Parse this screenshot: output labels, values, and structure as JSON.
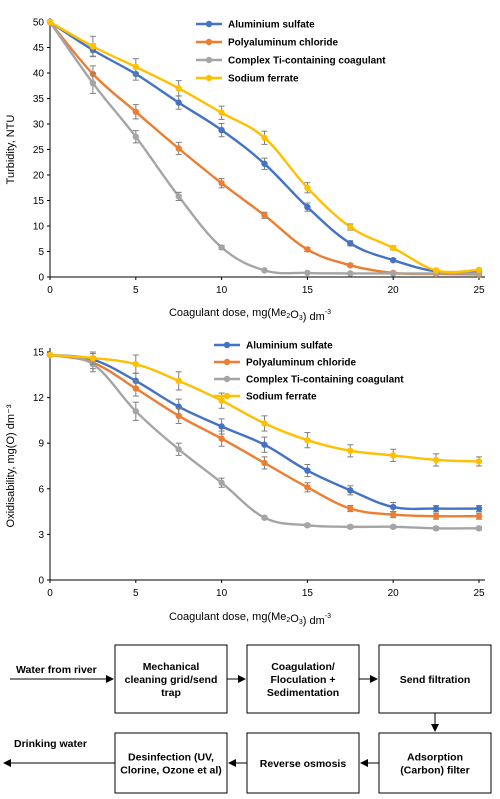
{
  "colors": {
    "aluminium_sulfate": "#4472C4",
    "polyaluminum_chloride": "#ED7D31",
    "ti_coagulant": "#A5A5A5",
    "sodium_ferrate": "#FFC000"
  },
  "chart_data": [
    {
      "type": "line",
      "xlabel_parts": [
        "Coagulant dose, mg(Me",
        "2",
        "O",
        "3",
        ") dm",
        "-3"
      ],
      "ylabel": "Turbidity, NTU",
      "xlim": [
        0,
        25
      ],
      "ylim": [
        0,
        50
      ],
      "xticks": [
        0,
        5,
        10,
        15,
        20,
        25
      ],
      "yticks": [
        0,
        5,
        10,
        15,
        20,
        25,
        30,
        35,
        40,
        45,
        50
      ],
      "legend": "top-right",
      "grid": false,
      "x": [
        0,
        2.5,
        5,
        7.5,
        10,
        12.5,
        15,
        17.5,
        20,
        22.5,
        25
      ],
      "series": [
        {
          "name": "Aluminium sulfate",
          "color_key": "aluminium_sulfate",
          "values": [
            50,
            44.5,
            39.8,
            34.2,
            28.8,
            22.2,
            13.7,
            6.6,
            3.3,
            1.1,
            0.9
          ],
          "errors": [
            0,
            1.2,
            1.2,
            1.3,
            1.3,
            1.1,
            0.8,
            0.5,
            0.3,
            0.2,
            0.2
          ]
        },
        {
          "name": "Polyaluminum chloride",
          "color_key": "polyaluminum_chloride",
          "values": [
            50,
            39.8,
            32.4,
            25.2,
            18.4,
            12.1,
            5.4,
            2.3,
            0.8,
            0.6,
            0.5
          ],
          "errors": [
            0,
            1.6,
            1.4,
            1.2,
            0.9,
            0.6,
            0.4,
            0.3,
            0.2,
            0.1,
            0.1
          ]
        },
        {
          "name": "Complex Ti-containing coagulant",
          "color_key": "ti_coagulant",
          "values": [
            50,
            38.0,
            27.5,
            15.8,
            5.8,
            1.3,
            0.8,
            0.7,
            0.7,
            0.7,
            0.7
          ],
          "errors": [
            0,
            2.0,
            1.2,
            0.8,
            0.4,
            0.2,
            0.1,
            0.1,
            0.1,
            0.1,
            0.1
          ]
        },
        {
          "name": "Sodium ferrate",
          "color_key": "sodium_ferrate",
          "values": [
            50,
            45.2,
            41.2,
            37.0,
            32.2,
            27.3,
            17.5,
            9.8,
            5.7,
            1.3,
            1.4
          ],
          "errors": [
            0,
            2.0,
            1.6,
            1.5,
            1.3,
            1.3,
            1.0,
            0.6,
            0.4,
            0.2,
            0.2
          ]
        }
      ]
    },
    {
      "type": "line",
      "xlabel_parts": [
        "Coagulant dose, mg(Me",
        "2",
        "O",
        "3",
        ") dm",
        "-3"
      ],
      "ylabel": "Oxidisability, mg(O) dm⁻³",
      "xlim": [
        0,
        25
      ],
      "ylim": [
        0,
        15
      ],
      "xticks": [
        0,
        5,
        10,
        15,
        20,
        25
      ],
      "yticks": [
        0,
        3,
        6,
        9,
        12,
        15
      ],
      "legend": "top-right",
      "grid": false,
      "x": [
        0,
        2.5,
        5,
        7.5,
        10,
        12.5,
        15,
        17.5,
        20,
        22.5,
        25
      ],
      "series": [
        {
          "name": "Aluminium sulfate",
          "color_key": "aluminium_sulfate",
          "values": [
            14.8,
            14.5,
            13.1,
            11.4,
            10.1,
            8.9,
            7.2,
            5.9,
            4.8,
            4.7,
            4.7
          ],
          "errors": [
            0,
            0.4,
            0.5,
            0.5,
            0.5,
            0.5,
            0.4,
            0.3,
            0.3,
            0.2,
            0.2
          ]
        },
        {
          "name": "Polyaluminum chloride",
          "color_key": "polyaluminum_chloride",
          "values": [
            14.8,
            14.3,
            12.6,
            10.8,
            9.3,
            7.7,
            6.1,
            4.7,
            4.3,
            4.2,
            4.2
          ],
          "errors": [
            0,
            0.4,
            0.5,
            0.5,
            0.5,
            0.4,
            0.3,
            0.2,
            0.2,
            0.2,
            0.2
          ]
        },
        {
          "name": "Complex Ti-containing coagulant",
          "color_key": "ti_coagulant",
          "values": [
            14.8,
            14.2,
            11.1,
            8.6,
            6.4,
            4.1,
            3.6,
            3.5,
            3.5,
            3.4,
            3.4
          ],
          "errors": [
            0,
            0.5,
            0.6,
            0.4,
            0.3,
            0.1,
            0.1,
            0.1,
            0.1,
            0.1,
            0.1
          ]
        },
        {
          "name": "Sodium ferrate",
          "color_key": "sodium_ferrate",
          "values": [
            14.8,
            14.6,
            14.2,
            13.1,
            11.8,
            10.3,
            9.2,
            8.5,
            8.2,
            7.9,
            7.8
          ],
          "errors": [
            0,
            0.4,
            0.6,
            0.6,
            0.5,
            0.5,
            0.5,
            0.4,
            0.4,
            0.4,
            0.3
          ]
        }
      ]
    }
  ],
  "flow": {
    "source": "Water from river",
    "output": "Drinking water",
    "steps": [
      [
        "Mechanical",
        "cleaning grid/send",
        "trap"
      ],
      [
        "Coagulation/",
        "Floculation +",
        "Sedimentation"
      ],
      [
        "Send filtration"
      ],
      [
        "Adsorption",
        "(Carbon) filter"
      ],
      [
        "Reverse osmosis"
      ],
      [
        "Desinfection (UV,",
        "Clorine, Ozone et al)"
      ]
    ]
  }
}
